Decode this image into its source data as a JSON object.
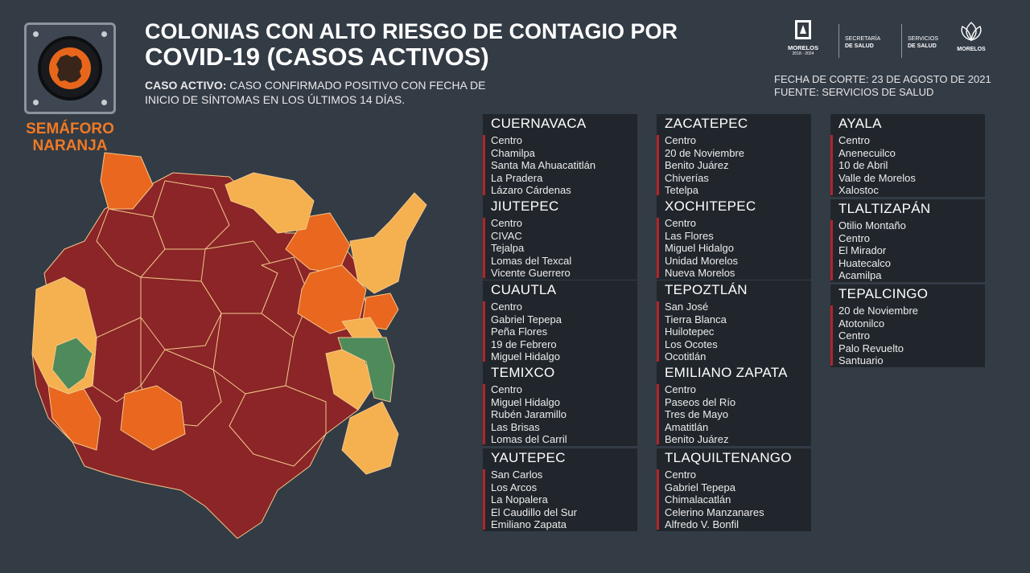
{
  "title": {
    "line1": "COLONIAS CON ALTO RIESGO DE CONTAGIO POR",
    "line2": "COVID-19 (CASOS ACTIVOS)"
  },
  "subtitle": {
    "bold": "CASO ACTIVO:",
    "line1_rest": " CASO CONFIRMADO POSITIVO CON FECHA DE",
    "line2": "INICIO DE SÍNTOMAS EN LOS ÚLTIMOS 14 DÍAS."
  },
  "semaforo": {
    "line1": "SEMÁFORO",
    "line2": "NARANJA",
    "color": "#e8661c"
  },
  "logos": {
    "morelos": {
      "name": "MORELOS",
      "years": "2018 - 2024"
    },
    "secretaria": {
      "line1": "SECRETARÍA",
      "line2": "DE SALUD"
    },
    "servicios": {
      "line1": "SERVICIOS",
      "line2": "DE SALUD"
    },
    "morelos2": {
      "name": "MORELOS"
    }
  },
  "fuente": {
    "fecha": "FECHA DE CORTE: 23 DE AGOSTO DE 2021",
    "fuente": "FUENTE: SERVICIOS DE SALUD"
  },
  "colors": {
    "red": "#8b2527",
    "orange": "#e9671f",
    "yellow": "#f5b04f",
    "green": "#4f8a5a",
    "bar": "#b3242a"
  },
  "municipios": [
    {
      "name": "CUERNAVACA",
      "items": [
        "Centro",
        "Chamilpa",
        "Santa Ma Ahuacatitlán",
        "La Pradera",
        "Lázaro Cárdenas"
      ]
    },
    {
      "name": "JIUTEPEC",
      "items": [
        "Centro",
        "CIVAC",
        "Tejalpa",
        "Lomas del Texcal",
        "Vicente Guerrero"
      ]
    },
    {
      "name": "CUAUTLA",
      "items": [
        "Centro",
        "Gabriel Tepepa",
        "Peña Flores",
        "19 de Febrero",
        "Miguel Hidalgo"
      ]
    },
    {
      "name": "TEMIXCO",
      "items": [
        "Centro",
        "Miguel Hidalgo",
        "Rubén Jaramillo",
        "Las Brisas",
        "Lomas del Carril"
      ]
    },
    {
      "name": "YAUTEPEC",
      "items": [
        "San Carlos",
        "Los Arcos",
        "La Nopalera",
        "El Caudillo del Sur",
        "Emiliano Zapata"
      ]
    },
    {
      "name": "ZACATEPEC",
      "items": [
        "Centro",
        "20 de Noviembre",
        "Benito Juárez",
        "Chiverías",
        "Tetelpa"
      ]
    },
    {
      "name": "XOCHITEPEC",
      "items": [
        "Centro",
        "Las Flores",
        "Miguel Hidalgo",
        "Unidad Morelos",
        "Nueva Morelos"
      ]
    },
    {
      "name": "TEPOZTLÁN",
      "items": [
        "San José",
        "Tierra Blanca",
        "Huilotepec",
        "Los Ocotes",
        "Ocotitlán"
      ]
    },
    {
      "name": "EMILIANO ZAPATA",
      "items": [
        "Centro",
        "Paseos del Río",
        "Tres de Mayo",
        "Amatitlán",
        "Benito Juárez"
      ]
    },
    {
      "name": "TLAQUILTENANGO",
      "items": [
        "Centro",
        "Gabriel Tepepa",
        "Chimalacatlán",
        "Celerino Manzanares",
        "Alfredo V. Bonfil"
      ]
    },
    {
      "name": "AYALA",
      "items": [
        "Centro",
        "Anenecuilco",
        "10 de Abril",
        "Valle de Morelos",
        "Xalostoc"
      ]
    },
    {
      "name": "TLALTIZAPÁN",
      "items": [
        "Otilio Montaño",
        "Centro",
        "El Mirador",
        "Huatecalco",
        "Acamilpa"
      ]
    },
    {
      "name": "TEPALCINGO",
      "items": [
        "20 de Noviembre",
        "Atotonilco",
        "Centro",
        "Palo Revuelto",
        "Santuario"
      ]
    }
  ]
}
